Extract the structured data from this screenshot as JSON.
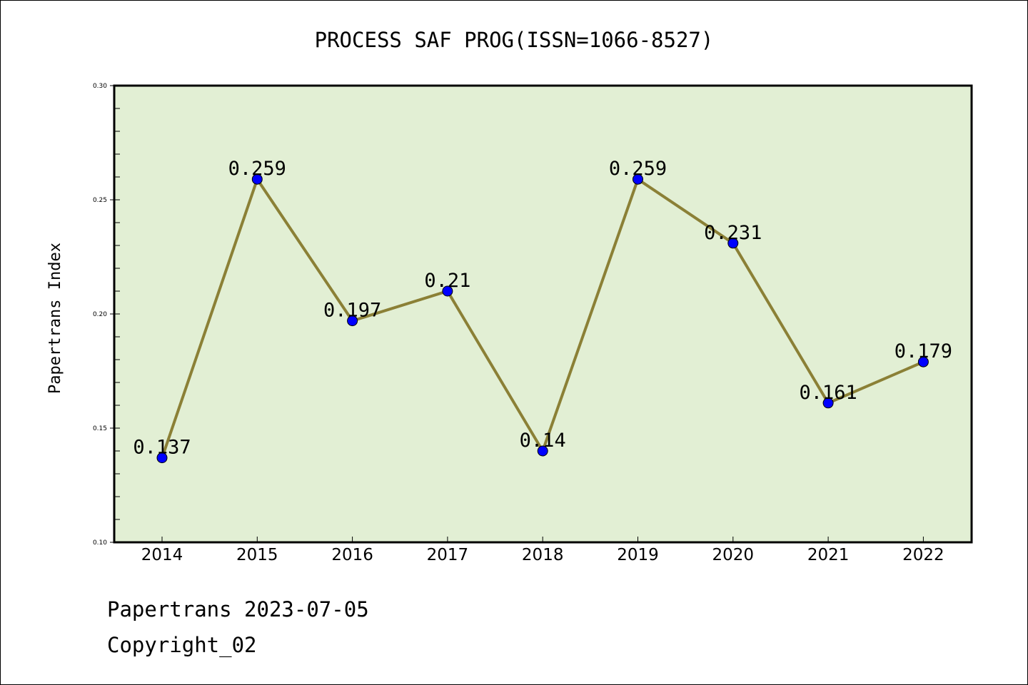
{
  "chart_data": {
    "type": "line",
    "title": "PROCESS SAF PROG(ISSN=1066-8527)",
    "xlabel": "",
    "ylabel": "Papertrans Index",
    "x": [
      "2014",
      "2015",
      "2016",
      "2017",
      "2018",
      "2019",
      "2020",
      "2021",
      "2022"
    ],
    "values": [
      0.137,
      0.259,
      0.197,
      0.21,
      0.14,
      0.259,
      0.231,
      0.161,
      0.179
    ],
    "data_labels": [
      "0.137",
      "0.259",
      "0.197",
      "0.21",
      "0.14",
      "0.259",
      "0.231",
      "0.161",
      "0.179"
    ],
    "ylim": [
      0.1,
      0.3
    ],
    "yticks": [
      "0.10",
      "0.15",
      "0.20",
      "0.25",
      "0.30"
    ],
    "line_color": "#8b8036",
    "marker_color": "#0000ff",
    "plot_background": "#e2efd4",
    "grid": false
  },
  "footer": {
    "line1": "Papertrans 2023-07-05",
    "line2": "Copyright_02"
  }
}
